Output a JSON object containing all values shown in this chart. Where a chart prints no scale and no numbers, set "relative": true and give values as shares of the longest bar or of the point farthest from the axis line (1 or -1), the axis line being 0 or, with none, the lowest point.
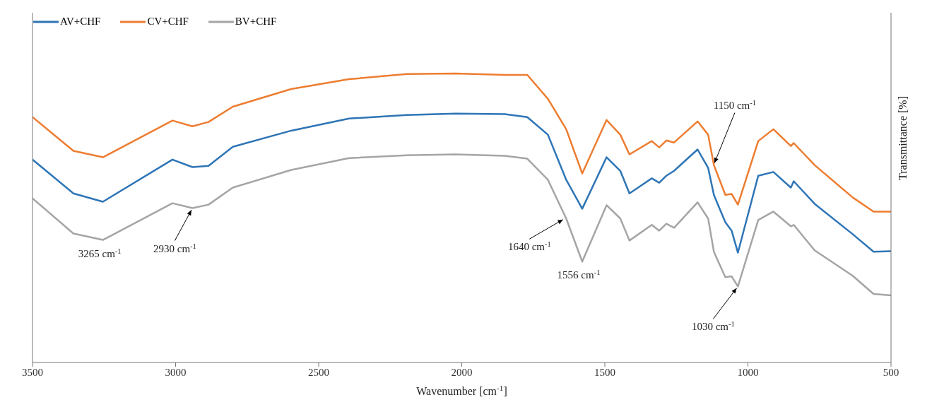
{
  "chart_data": {
    "type": "line",
    "relative": true,
    "xlabel": "Wavenumber [cm$^{-1}$]",
    "ylabel": "Transmittance [%]",
    "xlim": [
      3500,
      500
    ],
    "xticks": [
      3500,
      3000,
      2500,
      2000,
      1500,
      1000,
      500
    ],
    "legend": "top left",
    "grid": false,
    "x": [
      3500,
      3357,
      3254,
      3011,
      2941,
      2885,
      2800,
      2596,
      2394,
      2192,
      2022,
      1850,
      1771,
      1699,
      1635,
      1579,
      1494,
      1446,
      1414,
      1336,
      1310,
      1285,
      1258,
      1176,
      1139,
      1119,
      1079,
      1057,
      1035,
      964,
      911,
      850,
      840,
      767,
      634,
      561,
      500
    ],
    "series": [
      {
        "name": "AV+CHF",
        "color": "#2e75b6",
        "values": [
          0.702,
          0.585,
          0.556,
          0.702,
          0.676,
          0.68,
          0.746,
          0.802,
          0.844,
          0.856,
          0.861,
          0.859,
          0.849,
          0.788,
          0.632,
          0.532,
          0.71,
          0.663,
          0.585,
          0.637,
          0.622,
          0.646,
          0.663,
          0.737,
          0.673,
          0.58,
          0.485,
          0.456,
          0.38,
          0.646,
          0.659,
          0.605,
          0.627,
          0.549,
          0.444,
          0.383,
          0.385
        ]
      },
      {
        "name": "CV+CHF",
        "color": "#ed7d31",
        "values": [
          0.849,
          0.732,
          0.71,
          0.837,
          0.817,
          0.832,
          0.885,
          0.946,
          0.98,
          0.998,
          1,
          0.995,
          0.995,
          0.912,
          0.807,
          0.654,
          0.839,
          0.788,
          0.72,
          0.766,
          0.744,
          0.768,
          0.761,
          0.834,
          0.788,
          0.683,
          0.58,
          0.583,
          0.546,
          0.766,
          0.807,
          0.749,
          0.759,
          0.683,
          0.571,
          0.522,
          0.522
        ]
      },
      {
        "name": "BV+CHF",
        "color": "#a5a5a5",
        "values": [
          0.568,
          0.446,
          0.424,
          0.551,
          0.534,
          0.546,
          0.605,
          0.666,
          0.707,
          0.717,
          0.72,
          0.715,
          0.705,
          0.632,
          0.498,
          0.349,
          0.544,
          0.498,
          0.422,
          0.476,
          0.456,
          0.48,
          0.466,
          0.554,
          0.498,
          0.383,
          0.295,
          0.298,
          0.263,
          0.493,
          0.522,
          0.471,
          0.476,
          0.388,
          0.3,
          0.237,
          0.232
        ]
      }
    ],
    "annotations": [
      {
        "text": "3265 cm$^{-1}$",
        "x": 3265,
        "y": 0.424
      },
      {
        "text": "2930 cm$^{-1}$",
        "x": 2941,
        "y": 0.534
      },
      {
        "text": "1640 cm$^{-1}$",
        "x": 1640,
        "y": 0.498
      },
      {
        "text": "1556 cm$^{-1}$",
        "x": 1579,
        "y": 0.349
      },
      {
        "text": "1150 cm$^{-1}$",
        "x": 1120,
        "y": 0.683
      },
      {
        "text": "1030 cm$^{-1}$",
        "x": 1035,
        "y": 0.263
      }
    ]
  }
}
